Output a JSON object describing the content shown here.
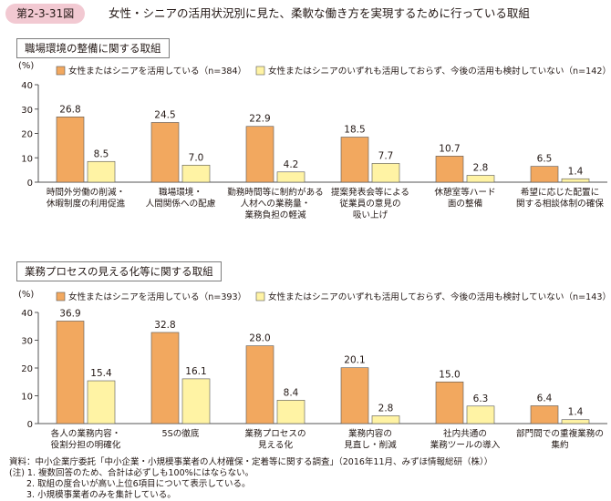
{
  "header": {
    "figure_number": "第2-3-31図",
    "title": "女性・シニアの活用状況別に見た、柔軟な働き方を実現するために行っている取組"
  },
  "colors": {
    "series_a": "#f2a85f",
    "series_b": "#fff3a4",
    "bar_stroke": "#555555",
    "axis": "#555555",
    "badge": "#f2c9d2"
  },
  "chart_data": [
    {
      "type": "bar",
      "title": "職場環境の整備に関する取組",
      "ylabel": "(%)",
      "ylim": [
        0,
        40
      ],
      "yticks": [
        0,
        10,
        20,
        30,
        40
      ],
      "grid": false,
      "legend_position": "top",
      "categories": [
        [
          "時間外労働の削減・",
          "休暇制度の利用促進"
        ],
        [
          "職場環境・",
          "人間関係への配慮"
        ],
        [
          "勤務時間等に制約がある",
          "人材への業務量・",
          "業務負担の軽減"
        ],
        [
          "提案発表会等による",
          "従業員の意見の",
          "吸い上げ"
        ],
        [
          "休憩室等ハード",
          "面の整備"
        ],
        [
          "希望に応じた配置に",
          "関する相談体制の確保"
        ]
      ],
      "series": [
        {
          "name": "女性またはシニアを活用している（n=384）",
          "values": [
            26.8,
            24.5,
            22.9,
            18.5,
            10.7,
            6.5
          ],
          "labels": [
            "26.8",
            "24.5",
            "22.9",
            "18.5",
            "10.7",
            "6.5"
          ]
        },
        {
          "name": "女性またはシニアのいずれも活用しておらず、今後の活用も検討していない（n=142）",
          "values": [
            8.5,
            7.0,
            4.2,
            7.7,
            2.8,
            1.4
          ],
          "labels": [
            "8.5",
            "7.0",
            "4.2",
            "7.7",
            "2.8",
            "1.4"
          ]
        }
      ]
    },
    {
      "type": "bar",
      "title": "業務プロセスの見える化等に関する取組",
      "ylabel": "(%)",
      "ylim": [
        0,
        40
      ],
      "yticks": [
        0,
        10,
        20,
        30,
        40
      ],
      "grid": false,
      "legend_position": "top",
      "categories": [
        [
          "各人の業務内容・",
          "役割分担の明確化"
        ],
        [
          "5Sの徹底"
        ],
        [
          "業務プロセスの",
          "見える化"
        ],
        [
          "業務内容の",
          "見直し・削減"
        ],
        [
          "社内共通の",
          "業務ツールの導入"
        ],
        [
          "部門間での重複業務の",
          "集約"
        ]
      ],
      "series": [
        {
          "name": "女性またはシニアを活用している（n=393）",
          "values": [
            36.9,
            32.8,
            28.0,
            20.1,
            15.0,
            6.4
          ],
          "labels": [
            "36.9",
            "32.8",
            "28.0",
            "20.1",
            "15.0",
            "6.4"
          ]
        },
        {
          "name": "女性またはシニアのいずれも活用しておらず、今後の活用も検討していない（n=143）",
          "values": [
            15.4,
            16.1,
            8.4,
            2.8,
            6.3,
            1.4
          ],
          "labels": [
            "15.4",
            "16.1",
            "8.4",
            "2.8",
            "6.3",
            "1.4"
          ]
        }
      ]
    }
  ],
  "notes": [
    "資料：中小企業庁委託「中小企業・小規模事業者の人材確保・定着等に関する調査」（2016年11月、みずほ情報総研（株））",
    "(注) 1. 複数回答のため、合計は必ずしも100%にはならない。",
    "2. 取組の度合いが高い上位6項目について表示している。",
    "3. 小規模事業者のみを集計している。"
  ]
}
